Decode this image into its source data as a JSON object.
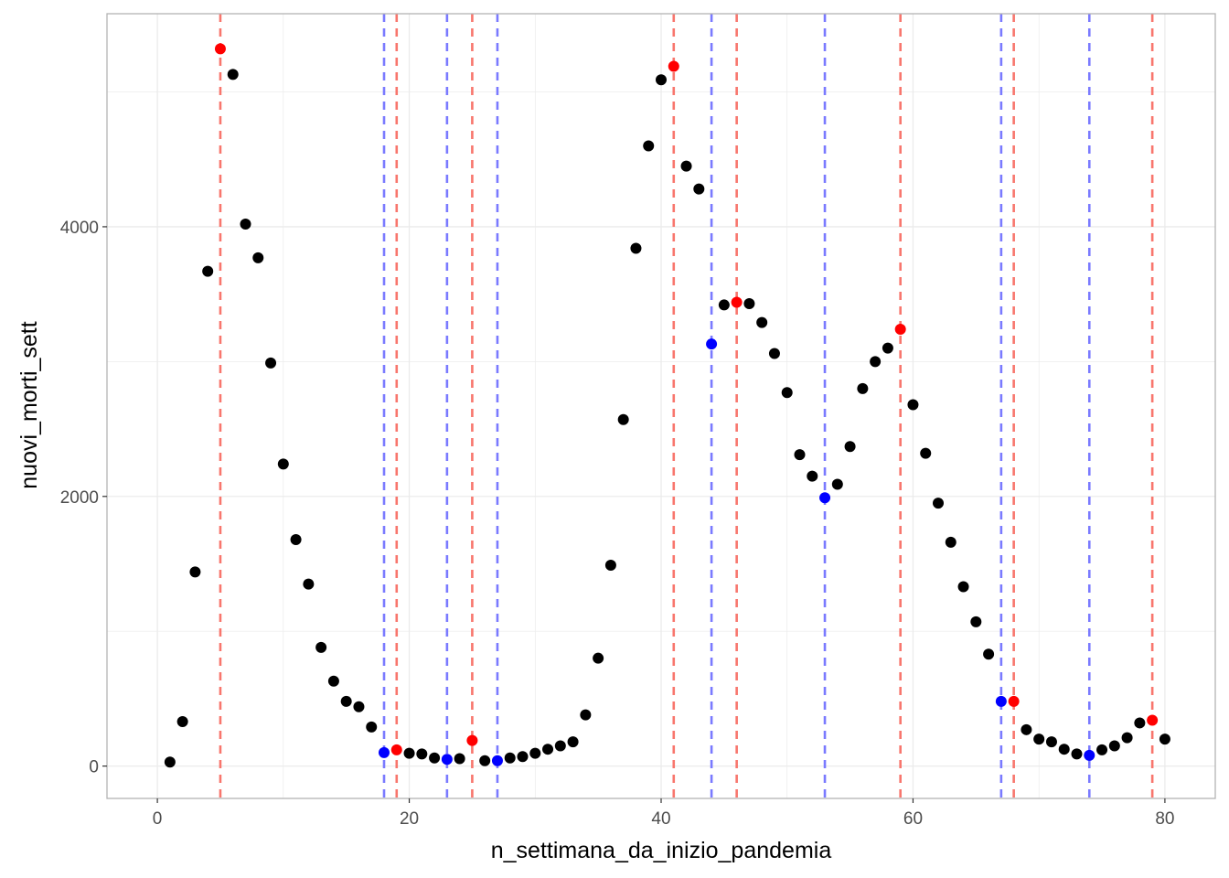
{
  "chart_data": {
    "type": "scatter",
    "title": "",
    "xlabel": "n_settimana_da_inizio_pandemia",
    "ylabel": "nuovi_morti_sett",
    "xlim": [
      -4,
      84
    ],
    "ylim": [
      -240,
      5580
    ],
    "x_ticks": [
      0,
      20,
      40,
      60,
      80
    ],
    "y_ticks": [
      0,
      2000,
      4000
    ],
    "grid": true,
    "legend": "none",
    "colors": {
      "normal": "#000000",
      "peak": "#ff0000",
      "trough": "#0000ff",
      "peak_line": "#f8766d",
      "trough_line": "#7a7aff",
      "grid": "#ebebeb",
      "panel_border": "#b3b3b3"
    },
    "points": [
      {
        "x": 1,
        "y": 30,
        "kind": "normal"
      },
      {
        "x": 2,
        "y": 330,
        "kind": "normal"
      },
      {
        "x": 3,
        "y": 1440,
        "kind": "normal"
      },
      {
        "x": 4,
        "y": 3670,
        "kind": "normal"
      },
      {
        "x": 5,
        "y": 5320,
        "kind": "peak"
      },
      {
        "x": 6,
        "y": 5130,
        "kind": "normal"
      },
      {
        "x": 7,
        "y": 4020,
        "kind": "normal"
      },
      {
        "x": 8,
        "y": 3770,
        "kind": "normal"
      },
      {
        "x": 9,
        "y": 2990,
        "kind": "normal"
      },
      {
        "x": 10,
        "y": 2240,
        "kind": "normal"
      },
      {
        "x": 11,
        "y": 1680,
        "kind": "normal"
      },
      {
        "x": 12,
        "y": 1350,
        "kind": "normal"
      },
      {
        "x": 13,
        "y": 880,
        "kind": "normal"
      },
      {
        "x": 14,
        "y": 630,
        "kind": "normal"
      },
      {
        "x": 15,
        "y": 480,
        "kind": "normal"
      },
      {
        "x": 16,
        "y": 440,
        "kind": "normal"
      },
      {
        "x": 17,
        "y": 290,
        "kind": "normal"
      },
      {
        "x": 18,
        "y": 100,
        "kind": "trough"
      },
      {
        "x": 19,
        "y": 120,
        "kind": "peak"
      },
      {
        "x": 20,
        "y": 95,
        "kind": "normal"
      },
      {
        "x": 21,
        "y": 90,
        "kind": "normal"
      },
      {
        "x": 22,
        "y": 60,
        "kind": "normal"
      },
      {
        "x": 23,
        "y": 50,
        "kind": "trough"
      },
      {
        "x": 24,
        "y": 55,
        "kind": "normal"
      },
      {
        "x": 25,
        "y": 190,
        "kind": "peak"
      },
      {
        "x": 26,
        "y": 40,
        "kind": "normal"
      },
      {
        "x": 27,
        "y": 40,
        "kind": "trough"
      },
      {
        "x": 28,
        "y": 60,
        "kind": "normal"
      },
      {
        "x": 29,
        "y": 70,
        "kind": "normal"
      },
      {
        "x": 30,
        "y": 95,
        "kind": "normal"
      },
      {
        "x": 31,
        "y": 125,
        "kind": "normal"
      },
      {
        "x": 32,
        "y": 150,
        "kind": "normal"
      },
      {
        "x": 33,
        "y": 180,
        "kind": "normal"
      },
      {
        "x": 34,
        "y": 380,
        "kind": "normal"
      },
      {
        "x": 35,
        "y": 800,
        "kind": "normal"
      },
      {
        "x": 36,
        "y": 1490,
        "kind": "normal"
      },
      {
        "x": 37,
        "y": 2570,
        "kind": "normal"
      },
      {
        "x": 38,
        "y": 3840,
        "kind": "normal"
      },
      {
        "x": 39,
        "y": 4600,
        "kind": "normal"
      },
      {
        "x": 40,
        "y": 5090,
        "kind": "normal"
      },
      {
        "x": 41,
        "y": 5190,
        "kind": "peak"
      },
      {
        "x": 42,
        "y": 4450,
        "kind": "normal"
      },
      {
        "x": 43,
        "y": 4280,
        "kind": "normal"
      },
      {
        "x": 44,
        "y": 3130,
        "kind": "trough"
      },
      {
        "x": 45,
        "y": 3420,
        "kind": "normal"
      },
      {
        "x": 46,
        "y": 3440,
        "kind": "peak"
      },
      {
        "x": 47,
        "y": 3430,
        "kind": "normal"
      },
      {
        "x": 48,
        "y": 3290,
        "kind": "normal"
      },
      {
        "x": 49,
        "y": 3060,
        "kind": "normal"
      },
      {
        "x": 50,
        "y": 2770,
        "kind": "normal"
      },
      {
        "x": 51,
        "y": 2310,
        "kind": "normal"
      },
      {
        "x": 52,
        "y": 2150,
        "kind": "normal"
      },
      {
        "x": 53,
        "y": 1990,
        "kind": "trough"
      },
      {
        "x": 54,
        "y": 2090,
        "kind": "normal"
      },
      {
        "x": 55,
        "y": 2370,
        "kind": "normal"
      },
      {
        "x": 56,
        "y": 2800,
        "kind": "normal"
      },
      {
        "x": 57,
        "y": 3000,
        "kind": "normal"
      },
      {
        "x": 58,
        "y": 3100,
        "kind": "normal"
      },
      {
        "x": 59,
        "y": 3240,
        "kind": "peak"
      },
      {
        "x": 60,
        "y": 2680,
        "kind": "normal"
      },
      {
        "x": 61,
        "y": 2320,
        "kind": "normal"
      },
      {
        "x": 62,
        "y": 1950,
        "kind": "normal"
      },
      {
        "x": 63,
        "y": 1660,
        "kind": "normal"
      },
      {
        "x": 64,
        "y": 1330,
        "kind": "normal"
      },
      {
        "x": 65,
        "y": 1070,
        "kind": "normal"
      },
      {
        "x": 66,
        "y": 830,
        "kind": "normal"
      },
      {
        "x": 67,
        "y": 480,
        "kind": "trough"
      },
      {
        "x": 68,
        "y": 480,
        "kind": "peak"
      },
      {
        "x": 69,
        "y": 270,
        "kind": "normal"
      },
      {
        "x": 70,
        "y": 200,
        "kind": "normal"
      },
      {
        "x": 71,
        "y": 180,
        "kind": "normal"
      },
      {
        "x": 72,
        "y": 125,
        "kind": "normal"
      },
      {
        "x": 73,
        "y": 90,
        "kind": "normal"
      },
      {
        "x": 74,
        "y": 80,
        "kind": "trough"
      },
      {
        "x": 75,
        "y": 120,
        "kind": "normal"
      },
      {
        "x": 76,
        "y": 150,
        "kind": "normal"
      },
      {
        "x": 77,
        "y": 210,
        "kind": "normal"
      },
      {
        "x": 78,
        "y": 320,
        "kind": "normal"
      },
      {
        "x": 79,
        "y": 340,
        "kind": "peak"
      },
      {
        "x": 80,
        "y": 200,
        "kind": "normal"
      }
    ],
    "vlines": [
      {
        "x": 5,
        "kind": "peak"
      },
      {
        "x": 18,
        "kind": "trough"
      },
      {
        "x": 19,
        "kind": "peak"
      },
      {
        "x": 23,
        "kind": "trough"
      },
      {
        "x": 25,
        "kind": "peak"
      },
      {
        "x": 27,
        "kind": "trough"
      },
      {
        "x": 41,
        "kind": "peak"
      },
      {
        "x": 44,
        "kind": "trough"
      },
      {
        "x": 46,
        "kind": "peak"
      },
      {
        "x": 53,
        "kind": "trough"
      },
      {
        "x": 59,
        "kind": "peak"
      },
      {
        "x": 67,
        "kind": "trough"
      },
      {
        "x": 68,
        "kind": "peak"
      },
      {
        "x": 74,
        "kind": "trough"
      },
      {
        "x": 79,
        "kind": "peak"
      }
    ]
  }
}
